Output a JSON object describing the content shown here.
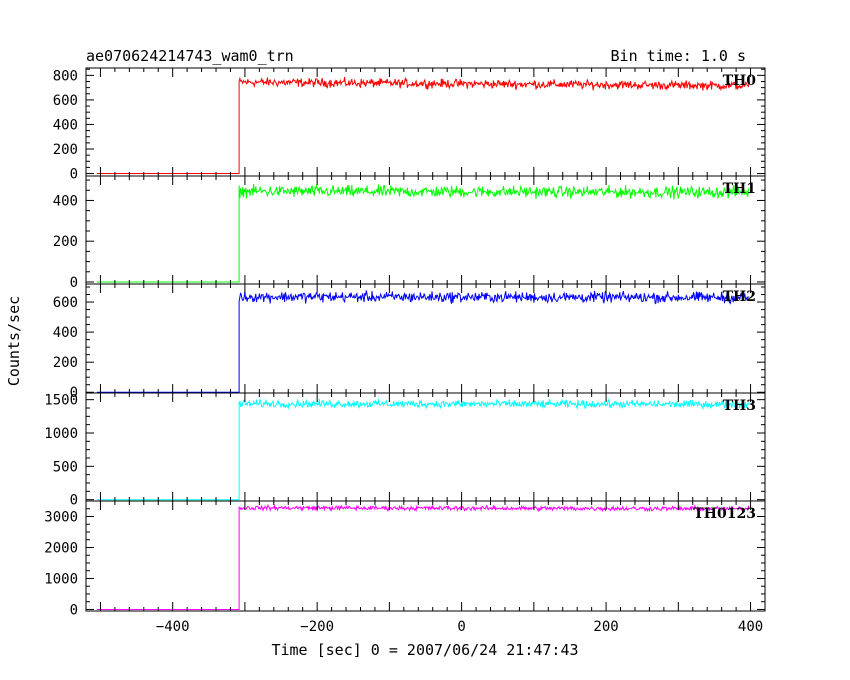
{
  "chart_data": {
    "type": "line",
    "title": "ae070624214743_wam0_trn",
    "bin_time": "Bin time: 1.0 s",
    "xlabel": "Time [sec] 0 = 2007/06/24 21:47:43",
    "ylabel": "Counts/sec",
    "xlim": [
      -520,
      420
    ],
    "x_ticks": [
      -400,
      -200,
      0,
      200,
      400
    ],
    "x_tick_labels": [
      "−400",
      "−200",
      "0",
      "200",
      "400"
    ],
    "trigger_time": -308,
    "grid": false,
    "series": [
      {
        "name": "TH0",
        "color": "#ff0000",
        "pre_level": 0,
        "post_level": 745,
        "post_end_level": 715,
        "noise": 25,
        "ylim": [
          -20,
          860
        ],
        "y_ticks": [
          0,
          200,
          400,
          600,
          800
        ],
        "y_tick_labels": [
          "0",
          "200",
          "400",
          "600",
          "800"
        ]
      },
      {
        "name": "TH1",
        "color": "#00ff00",
        "pre_level": 0,
        "post_level": 445,
        "post_end_level": 440,
        "noise": 20,
        "ylim": [
          -10,
          520
        ],
        "y_ticks": [
          0,
          200,
          400
        ],
        "y_tick_labels": [
          "0",
          "200",
          "400"
        ]
      },
      {
        "name": "TH2",
        "color": "#0000ff",
        "pre_level": 0,
        "post_level": 635,
        "post_end_level": 630,
        "noise": 25,
        "ylim": [
          -5,
          720
        ],
        "y_ticks": [
          0,
          200,
          400,
          600
        ],
        "y_tick_labels": [
          "0",
          "200",
          "400",
          "600"
        ]
      },
      {
        "name": "TH3",
        "color": "#00ffff",
        "pre_level": 0,
        "post_level": 1440,
        "post_end_level": 1430,
        "noise": 40,
        "ylim": [
          -20,
          1600
        ],
        "y_ticks": [
          0,
          500,
          1000,
          1500
        ],
        "y_tick_labels": [
          "0",
          "500",
          "1000",
          "1500"
        ]
      },
      {
        "name": "TH0123",
        "color": "#ff00ff",
        "pre_level": 0,
        "post_level": 3280,
        "post_end_level": 3250,
        "noise": 50,
        "ylim": [
          -50,
          3500
        ],
        "y_ticks": [
          0,
          1000,
          2000,
          3000
        ],
        "y_tick_labels": [
          "0",
          "1000",
          "2000",
          "3000"
        ]
      }
    ]
  }
}
